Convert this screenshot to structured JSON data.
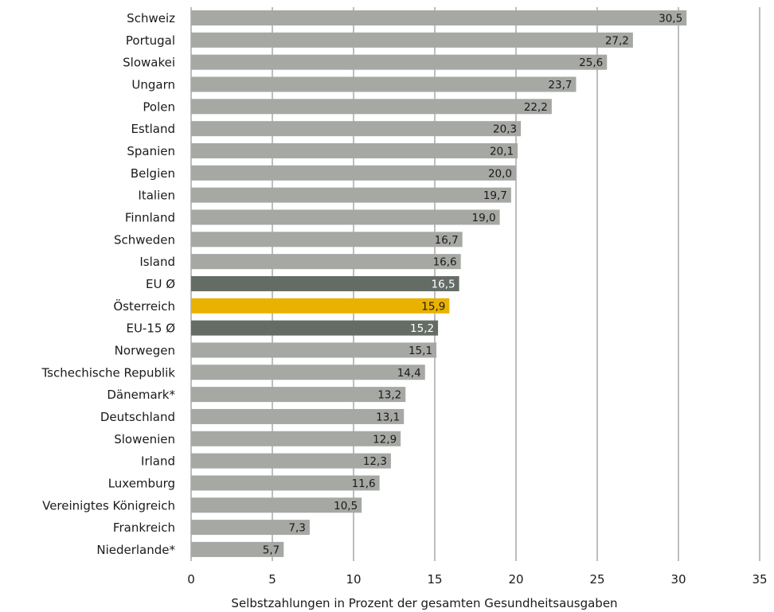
{
  "chart_data": {
    "type": "bar",
    "orientation": "horizontal",
    "title": "",
    "xlabel": "Selbstzahlungen in Prozent der gesamten Gesundheitsausgaben",
    "xlim": [
      0,
      35
    ],
    "xticks": [
      "0",
      "5",
      "10",
      "15",
      "20",
      "25",
      "30",
      "35"
    ],
    "grid": "vertical",
    "colors": {
      "default": "#a6a8a4",
      "average": "#656c65",
      "highlight": "#e9b200"
    },
    "categories": [
      "Schweiz",
      "Portugal",
      "Slowakei",
      "Ungarn",
      "Polen",
      "Estland",
      "Spanien",
      "Belgien",
      "Italien",
      "Finnland",
      "Schweden",
      "Island",
      "EU Ø",
      "Österreich",
      "EU-15 Ø",
      "Norwegen",
      "Tschechische Republik",
      "Dänemark*",
      "Deutschland",
      "Slowenien",
      "Irland",
      "Luxemburg",
      "Vereinigtes Königreich",
      "Frankreich",
      "Niederlande*"
    ],
    "values": [
      30.5,
      27.2,
      25.6,
      23.7,
      22.2,
      20.3,
      20.1,
      20.0,
      19.7,
      19.0,
      16.7,
      16.6,
      16.5,
      15.9,
      15.2,
      15.1,
      14.4,
      13.2,
      13.1,
      12.9,
      12.3,
      11.6,
      10.5,
      7.3,
      5.7
    ],
    "value_labels": [
      "30,5",
      "27,2",
      "25,6",
      "23,7",
      "22,2",
      "20,3",
      "20,1",
      "20,0",
      "19,7",
      "19,0",
      "16,7",
      "16,6",
      "16,5",
      "15,9",
      "15,2",
      "15,1",
      "14,4",
      "13,2",
      "13,1",
      "12,9",
      "12,3",
      "11,6",
      "10,5",
      "7,3",
      "5,7"
    ],
    "bar_styles": [
      "default",
      "default",
      "default",
      "default",
      "default",
      "default",
      "default",
      "default",
      "default",
      "default",
      "default",
      "default",
      "average",
      "highlight",
      "average",
      "default",
      "default",
      "default",
      "default",
      "default",
      "default",
      "default",
      "default",
      "default",
      "default"
    ]
  }
}
